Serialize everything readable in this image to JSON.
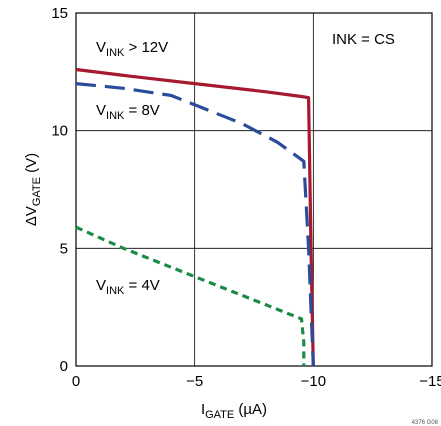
{
  "chart_data": {
    "type": "line",
    "xlabel": {
      "main": "I",
      "sub": "GATE",
      "unit": " (µA)"
    },
    "ylabel": {
      "prefix": "ΔV",
      "sub": "GATE",
      "unit": " (V)"
    },
    "xlim": [
      0,
      -15
    ],
    "ylim": [
      0,
      15
    ],
    "x_ticks": [
      0,
      -5,
      -10,
      -15
    ],
    "y_ticks": [
      0,
      5,
      10,
      15
    ],
    "x_tick_labels": [
      "0",
      "−5",
      "−10",
      "−15"
    ],
    "y_tick_labels": [
      "0",
      "5",
      "10",
      "15"
    ],
    "grid": true,
    "annotation": "INK = CS",
    "figure_id": "4376 G08",
    "series": [
      {
        "label_main": "V",
        "label_sub": "INK",
        "label_rest": " > 12V",
        "color": "#a6192e",
        "style": "solid",
        "x": [
          0,
          -2,
          -5,
          -8,
          -9.5,
          -9.8,
          -9.9,
          -10
        ],
        "y": [
          12.6,
          12.35,
          12.0,
          11.65,
          11.45,
          11.4,
          5,
          0
        ]
      },
      {
        "label_main": "V",
        "label_sub": "INK",
        "label_rest": " = 8V",
        "color": "#2a4c9b",
        "style": "long-dash",
        "x": [
          0,
          -2,
          -4,
          -5,
          -7,
          -8.5,
          -9.6,
          -9.8,
          -10
        ],
        "y": [
          12.0,
          11.8,
          11.5,
          11.1,
          10.3,
          9.5,
          8.7,
          5,
          0
        ]
      },
      {
        "label_main": "V",
        "label_sub": "INK",
        "label_rest": " = 4V",
        "color": "#1b8a45",
        "style": "short-dash",
        "x": [
          0,
          -2,
          -4,
          -6,
          -8,
          -9.5,
          -9.6,
          -9.6
        ],
        "y": [
          5.9,
          5.0,
          4.2,
          3.4,
          2.6,
          2.0,
          1.0,
          0
        ]
      }
    ]
  }
}
